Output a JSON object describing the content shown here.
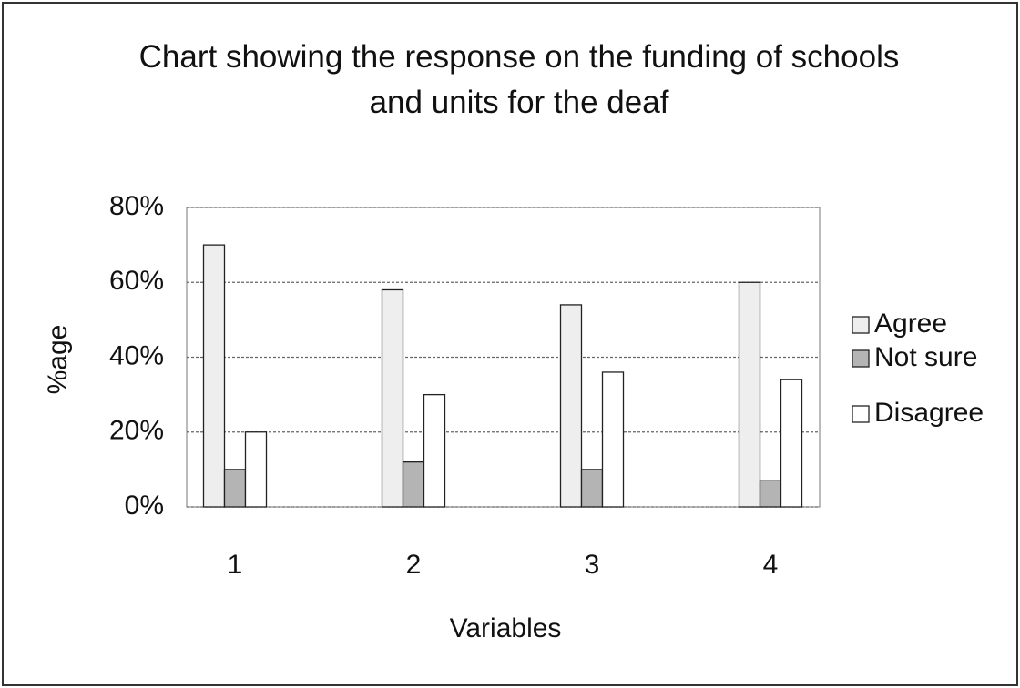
{
  "chart_data": {
    "type": "bar",
    "title": "Chart showing the response on the funding of schools and units for the deaf",
    "x_label": "Variables",
    "y_label": "%age",
    "categories": [
      "1",
      "2",
      "3",
      "4"
    ],
    "series": [
      {
        "name": "Agree",
        "color": "#eeeeee",
        "values": [
          70,
          58,
          54,
          60
        ]
      },
      {
        "name": "Not sure",
        "color": "#b4b4b4",
        "values": [
          10,
          12,
          10,
          7
        ]
      },
      {
        "name": "Disagree",
        "color": "#ffffff",
        "values": [
          20,
          30,
          36,
          34
        ]
      }
    ],
    "ylim": [
      0,
      80
    ],
    "yticks": [
      {
        "value": 0,
        "label": "0%"
      },
      {
        "value": 20,
        "label": "20%"
      },
      {
        "value": 40,
        "label": "40%"
      },
      {
        "value": 60,
        "label": "60%"
      },
      {
        "value": 80,
        "label": "80%"
      }
    ],
    "grid": true,
    "legend": "right"
  }
}
